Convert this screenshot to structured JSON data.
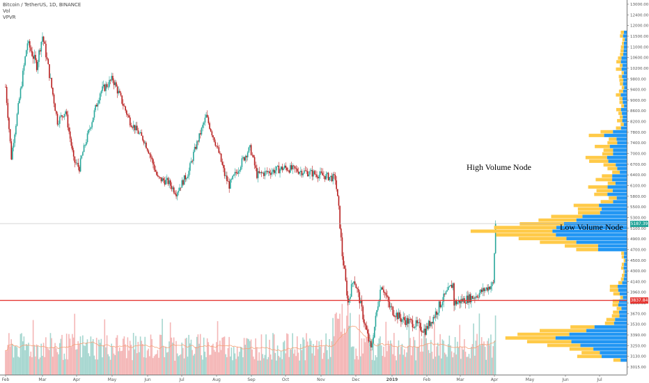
{
  "legend": {
    "symbol": "Bitcoin / TetherUS, 1D, BINANCE",
    "vol": "Vol",
    "vpvr": "VPVR"
  },
  "annotations": {
    "high_volume_node": "High Volume Node",
    "low_volume_node": "Low Volume Node"
  },
  "price_tags": {
    "last_price": "5187.39",
    "support_level": "3837.84"
  },
  "colors": {
    "up": "#26a69a",
    "down": "#b71c1c",
    "vol_up": "#a5d6cf",
    "vol_down": "#f4b6b6",
    "vpvr_up": "#2196f3",
    "vpvr_down": "#ffca48",
    "support_line": "#e53935",
    "last_tag": "#26a69a",
    "support_tag": "#e53935",
    "ma": "#f6a278"
  },
  "chart_data": {
    "type": "candlestick",
    "y_ticks": [
      "13000.00",
      "12400.00",
      "12000.00",
      "11500.00",
      "11000.00",
      "10600.00",
      "10200.00",
      "9800.00",
      "9400.00",
      "9000.00",
      "8600.00",
      "8200.00",
      "7800.00",
      "7400.00",
      "7000.00",
      "6700.00",
      "6400.00",
      "6100.00",
      "5800.00",
      "5500.00",
      "5300.00",
      "5100.00",
      "4900.00",
      "4700.00",
      "4500.00",
      "4300.00",
      "4140.00",
      "3960.00",
      "3800.00",
      "3670.00",
      "3530.00",
      "3390.00",
      "3250.00",
      "3130.00",
      "3015.00"
    ],
    "x_ticks": [
      "Feb",
      "Mar",
      "Apr",
      "May",
      "Jun",
      "Jul",
      "Aug",
      "Sep",
      "Oct",
      "Nov",
      "Dec",
      "2019",
      "Feb",
      "Mar",
      "Apr",
      "May",
      "Jun",
      "Jul"
    ],
    "ylim": [
      3000,
      13300
    ],
    "price_anchors": [
      [
        "2018-02-01",
        9500
      ],
      [
        "2018-02-06",
        6900
      ],
      [
        "2018-02-20",
        11200
      ],
      [
        "2018-02-28",
        10300
      ],
      [
        "2018-03-05",
        11500
      ],
      [
        "2018-03-18",
        8200
      ],
      [
        "2018-03-25",
        8600
      ],
      [
        "2018-04-01",
        6800
      ],
      [
        "2018-04-06",
        6600
      ],
      [
        "2018-04-24",
        9300
      ],
      [
        "2018-05-05",
        9800
      ],
      [
        "2018-05-20",
        8200
      ],
      [
        "2018-06-01",
        7500
      ],
      [
        "2018-06-13",
        6300
      ],
      [
        "2018-06-22",
        6200
      ],
      [
        "2018-06-29",
        5900
      ],
      [
        "2018-07-10",
        6500
      ],
      [
        "2018-07-25",
        8400
      ],
      [
        "2018-08-10",
        6400
      ],
      [
        "2018-08-14",
        6100
      ],
      [
        "2018-09-01",
        7200
      ],
      [
        "2018-09-07",
        6400
      ],
      [
        "2018-10-01",
        6600
      ],
      [
        "2018-11-01",
        6400
      ],
      [
        "2018-11-14",
        6300
      ],
      [
        "2018-11-20",
        4600
      ],
      [
        "2018-11-25",
        3800
      ],
      [
        "2018-11-30",
        4200
      ],
      [
        "2018-12-10",
        3500
      ],
      [
        "2018-12-15",
        3200
      ],
      [
        "2018-12-24",
        4100
      ],
      [
        "2018-12-31",
        3750
      ],
      [
        "2019-01-10",
        3600
      ],
      [
        "2019-01-20",
        3550
      ],
      [
        "2019-01-31",
        3450
      ],
      [
        "2019-02-08",
        3650
      ],
      [
        "2019-02-24",
        4100
      ],
      [
        "2019-02-25",
        3800
      ],
      [
        "2019-03-15",
        3900
      ],
      [
        "2019-03-31",
        4100
      ],
      [
        "2019-04-02",
        5187.39
      ]
    ],
    "support_price": 3837.84,
    "last_price": 5187.39
  }
}
